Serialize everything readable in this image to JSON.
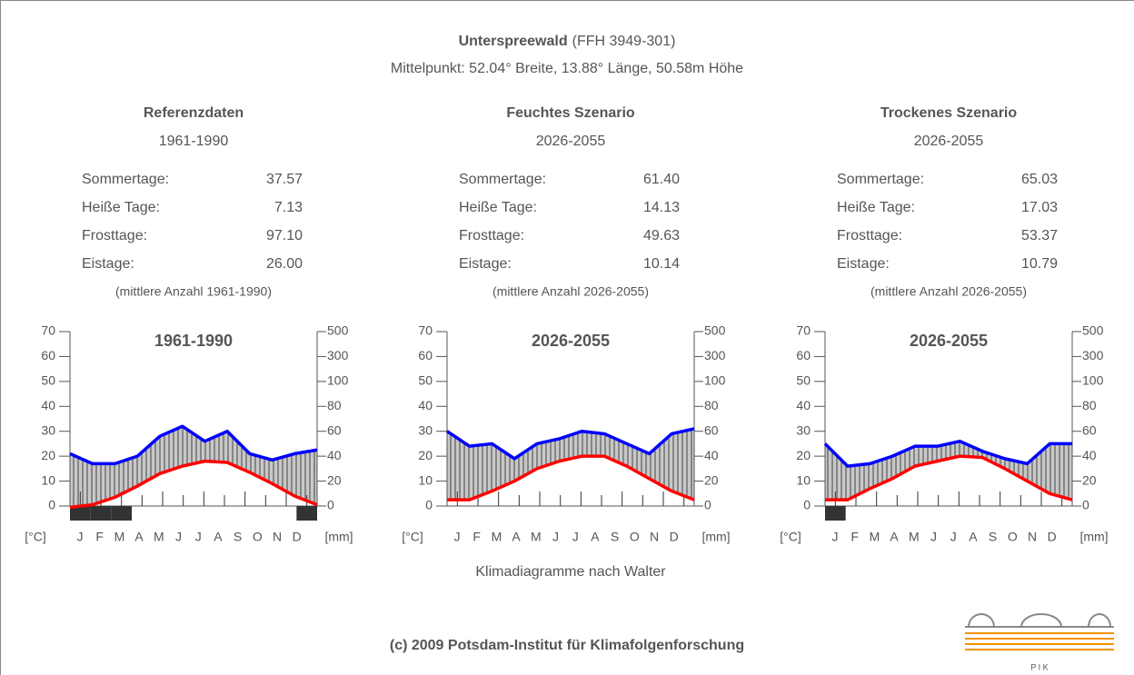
{
  "header": {
    "title": "Unterspreewald",
    "code": "(FFH 3949-301)",
    "subtitle": "Mittelpunkt: 52.04° Breite, 13.88° Länge, 50.58m Höhe"
  },
  "panels": [
    {
      "title": "Referenzdaten",
      "period": "1961-1990",
      "stats": [
        {
          "label": "Sommertage:",
          "value": "37.57"
        },
        {
          "label": "Heiße Tage:",
          "value": "7.13"
        },
        {
          "label": "Frosttage:",
          "value": "97.10"
        },
        {
          "label": "Eistage:",
          "value": "26.00"
        }
      ],
      "note": "(mittlere Anzahl 1961-1990)"
    },
    {
      "title": "Feuchtes Szenario",
      "period": "2026-2055",
      "stats": [
        {
          "label": "Sommertage:",
          "value": "61.40"
        },
        {
          "label": "Heiße Tage:",
          "value": "14.13"
        },
        {
          "label": "Frosttage:",
          "value": "49.63"
        },
        {
          "label": "Eistage:",
          "value": "10.14"
        }
      ],
      "note": "(mittlere Anzahl 2026-2055)"
    },
    {
      "title": "Trockenes Szenario",
      "period": "2026-2055",
      "stats": [
        {
          "label": "Sommertage:",
          "value": "65.03"
        },
        {
          "label": "Heiße Tage:",
          "value": "17.03"
        },
        {
          "label": "Frosttage:",
          "value": "53.37"
        },
        {
          "label": "Eistage:",
          "value": "10.79"
        }
      ],
      "note": "(mittlere Anzahl 2026-2055)"
    }
  ],
  "chart_data": [
    {
      "type": "line",
      "title": "1961-1990",
      "y_label": "[°C]",
      "y2_label": "[mm]",
      "categories": [
        "J",
        "F",
        "M",
        "A",
        "M",
        "J",
        "J",
        "A",
        "S",
        "O",
        "N",
        "D"
      ],
      "series": [
        {
          "color": "#ff0000",
          "values": [
            -0.5,
            0.5,
            3.5,
            8,
            13,
            16,
            18,
            17.5,
            13.5,
            9,
            4,
            0.5
          ]
        },
        {
          "color": "#0000ff",
          "axis": "y2",
          "values": [
            42,
            34,
            34,
            40,
            56,
            64,
            52,
            60,
            42,
            37,
            42,
            45
          ]
        }
      ],
      "frost_months": [
        1,
        1,
        1,
        0,
        0,
        0,
        0,
        0,
        0,
        0,
        0,
        1
      ],
      "ylim": [
        0,
        70
      ],
      "yticks": [
        0,
        10,
        20,
        30,
        40,
        50,
        60,
        70
      ],
      "y2lim": [
        0,
        500
      ],
      "y2ticks": [
        0,
        20,
        40,
        60,
        80,
        100,
        300,
        500
      ]
    },
    {
      "type": "line",
      "title": "2026-2055",
      "y_label": "[°C]",
      "y2_label": "[mm]",
      "categories": [
        "J",
        "F",
        "M",
        "A",
        "M",
        "J",
        "J",
        "A",
        "S",
        "O",
        "N",
        "D"
      ],
      "series": [
        {
          "color": "#ff0000",
          "values": [
            2.5,
            2.5,
            6,
            10,
            15,
            18,
            20,
            20,
            16,
            11,
            6,
            2.5
          ]
        },
        {
          "color": "#0000ff",
          "axis": "y2",
          "values": [
            60,
            48,
            50,
            38,
            50,
            54,
            60,
            58,
            50,
            42,
            58,
            62
          ]
        }
      ],
      "frost_months": [
        0,
        0,
        0,
        0,
        0,
        0,
        0,
        0,
        0,
        0,
        0,
        0
      ],
      "ylim": [
        0,
        70
      ],
      "yticks": [
        0,
        10,
        20,
        30,
        40,
        50,
        60,
        70
      ],
      "y2lim": [
        0,
        500
      ],
      "y2ticks": [
        0,
        20,
        40,
        60,
        80,
        100,
        300,
        500
      ]
    },
    {
      "type": "line",
      "title": "2026-2055",
      "y_label": "[°C]",
      "y2_label": "[mm]",
      "categories": [
        "J",
        "F",
        "M",
        "A",
        "M",
        "J",
        "J",
        "A",
        "S",
        "O",
        "N",
        "D"
      ],
      "series": [
        {
          "color": "#ff0000",
          "values": [
            2.5,
            2.5,
            7,
            11,
            16,
            18,
            20,
            19.5,
            15,
            10,
            5,
            2.5
          ]
        },
        {
          "color": "#0000ff",
          "axis": "y2",
          "values": [
            50,
            32,
            34,
            40,
            48,
            48,
            52,
            44,
            38,
            34,
            50,
            50
          ]
        }
      ],
      "frost_months": [
        1,
        0,
        0,
        0,
        0,
        0,
        0,
        0,
        0,
        0,
        0,
        0
      ],
      "ylim": [
        0,
        70
      ],
      "yticks": [
        0,
        10,
        20,
        30,
        40,
        50,
        60,
        70
      ],
      "y2lim": [
        0,
        500
      ],
      "y2ticks": [
        0,
        20,
        40,
        60,
        80,
        100,
        300,
        500
      ]
    }
  ],
  "caption": "Klimadiagramme nach Walter",
  "footer": "(c) 2009 Potsdam-Institut für Klimafolgenforschung",
  "logo_text": "P I K"
}
